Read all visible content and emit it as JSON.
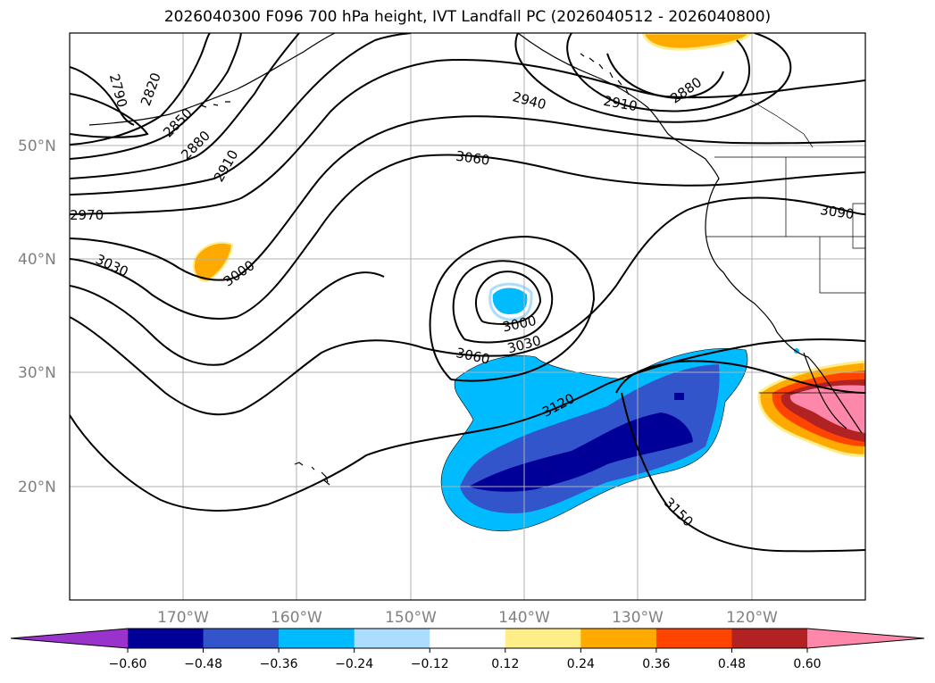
{
  "title": "2026040300 F096 700 hPa height, IVT Landfall PC (2026040512 - 2026040800)",
  "lat_labels": [
    "50°N",
    "40°N",
    "30°N",
    "20°N"
  ],
  "lon_labels": [
    "170°W",
    "160°W",
    "150°W",
    "140°W",
    "130°W",
    "120°W"
  ],
  "contour_labels": [
    "2790",
    "2820",
    "2850",
    "2880",
    "2910",
    "2970",
    "3030",
    "3000",
    "2940",
    "3060",
    "2910",
    "2880",
    "3090",
    "3000",
    "3030",
    "3060",
    "3120",
    "3150"
  ],
  "colorbar": {
    "ticks": [
      "−0.60",
      "−0.48",
      "−0.36",
      "−0.24",
      "−0.12",
      "0.12",
      "0.24",
      "0.36",
      "0.48",
      "0.60"
    ],
    "colors": [
      "#9933cc",
      "#000099",
      "#3355cc",
      "#00bbff",
      "#aaddff",
      "#ffffff",
      "#ffee88",
      "#ffaa00",
      "#ff4400",
      "#b22222",
      "#ff88aa"
    ]
  },
  "colors": {
    "strong_negative": "#000099",
    "moderate_negative": "#3355cc",
    "weak_negative": "#00bbff",
    "faint_negative": "#aaddff",
    "weak_positive": "#ffaa00",
    "strong_positive": "#ff88aa"
  }
}
